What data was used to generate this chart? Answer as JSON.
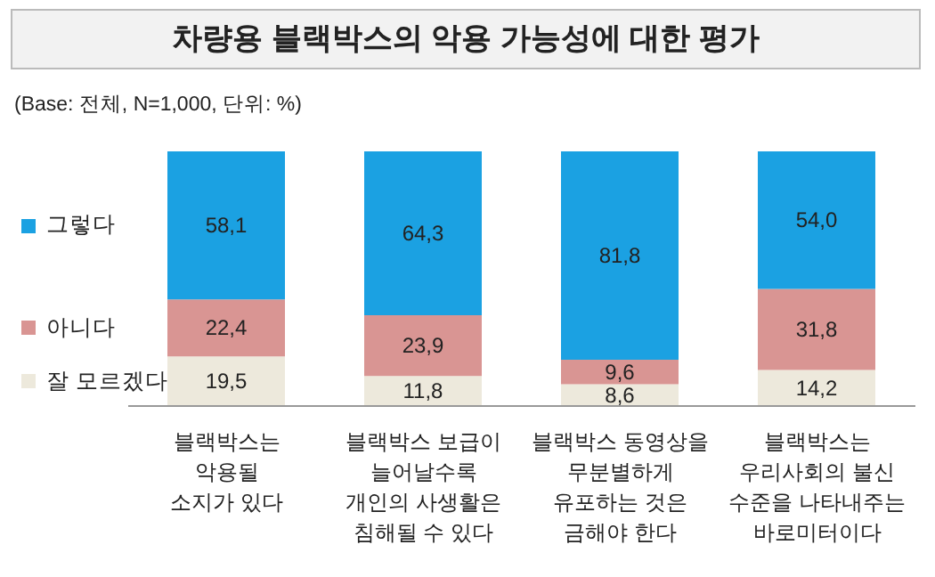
{
  "chart_data": {
    "type": "bar",
    "title": "차량용 블랙박스의 악용 가능성에 대한 평가",
    "subtitle": "(Base: 전체, N=1,000, 단위: %)",
    "categories": [
      "블랙박스는\n악용될\n소지가 있다",
      "블랙박스 보급이\n늘어날수록\n개인의 사생활은\n침해될 수 있다",
      "블랙박스 동영상을\n무분별하게\n유포하는 것은\n금해야 한다",
      "블랙박스는\n우리사회의 불신\n수준을 나타내주는\n바로미터이다"
    ],
    "stacked": true,
    "data_labels": true,
    "legend": "left",
    "series": [
      {
        "name": "잘 모르겠다",
        "color": "#ede9dc",
        "values": [
          19.5,
          11.8,
          8.6,
          14.2
        ],
        "value_labels": [
          "19,5",
          "11,8",
          "8,6",
          "14,2"
        ]
      },
      {
        "name": "아니다",
        "color": "#d99593",
        "values": [
          22.4,
          23.9,
          9.6,
          31.8
        ],
        "value_labels": [
          "22,4",
          "23,9",
          "9,6",
          "31,8"
        ]
      },
      {
        "name": "그렇다",
        "color": "#1ba1e2",
        "values": [
          58.1,
          64.3,
          81.8,
          54.0
        ],
        "value_labels": [
          "58,1",
          "64,3",
          "81,8",
          "54,0"
        ]
      }
    ]
  }
}
